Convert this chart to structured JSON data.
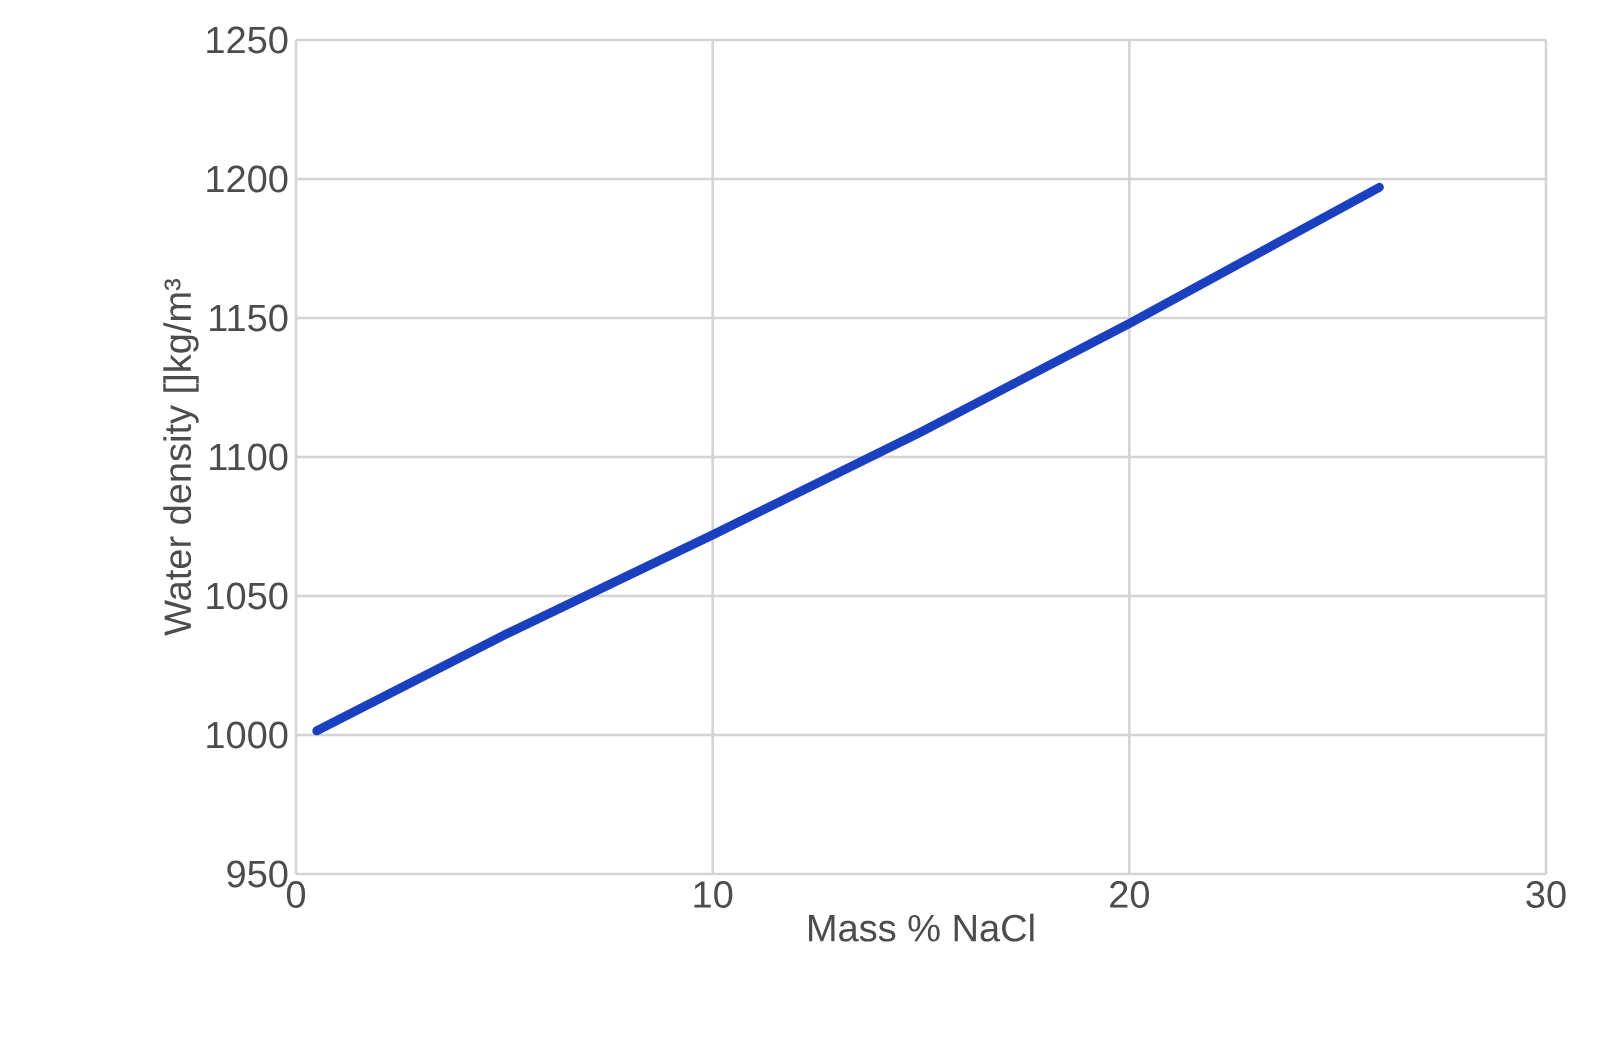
{
  "chart_data": {
    "type": "line",
    "xlabel": "Mass % NaCl",
    "ylabel": "Water density []kg/m³",
    "x": [
      0.5,
      5,
      10,
      15,
      20,
      26
    ],
    "series": [
      {
        "color": "#1a3fbf",
        "values": [
          1001.5,
          1036,
          1072,
          1109,
          1148,
          1197
        ]
      }
    ],
    "xlim": [
      0,
      30
    ],
    "xticks": [
      0,
      10,
      20,
      30
    ],
    "ylim": [
      950,
      1250
    ],
    "yticks": [
      950,
      1000,
      1050,
      1100,
      1150,
      1200,
      1250
    ],
    "grid": true,
    "marker": "none",
    "line_style": "solid"
  }
}
